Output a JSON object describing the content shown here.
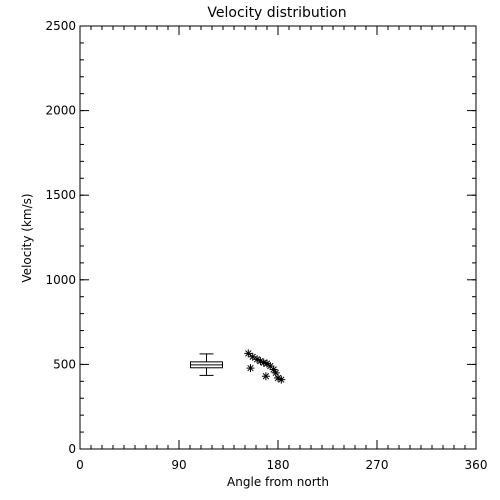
{
  "chart_data": {
    "type": "scatter",
    "title": "Velocity distribution",
    "xlabel": "Angle from north",
    "ylabel": "Velocity (km/s)",
    "xlim": [
      0,
      360
    ],
    "ylim": [
      0,
      2500
    ],
    "xticks": [
      0,
      90,
      180,
      270,
      360
    ],
    "yticks": [
      0,
      500,
      1000,
      1500,
      2000,
      2500
    ],
    "x_minor_step": 10,
    "y_minor_step": 100,
    "grid": false,
    "marker": "asterisk",
    "boxplot": {
      "x": 115,
      "min": 435,
      "q1": 480,
      "median": 497,
      "q3": 515,
      "max": 562
    },
    "points": [
      {
        "x": 153,
        "y": 565
      },
      {
        "x": 157,
        "y": 545
      },
      {
        "x": 161,
        "y": 530
      },
      {
        "x": 164,
        "y": 520
      },
      {
        "x": 167,
        "y": 510
      },
      {
        "x": 170,
        "y": 505
      },
      {
        "x": 155,
        "y": 478
      },
      {
        "x": 173,
        "y": 490
      },
      {
        "x": 176,
        "y": 470
      },
      {
        "x": 169,
        "y": 430
      },
      {
        "x": 178,
        "y": 450
      },
      {
        "x": 180,
        "y": 420
      },
      {
        "x": 183,
        "y": 410
      }
    ]
  }
}
